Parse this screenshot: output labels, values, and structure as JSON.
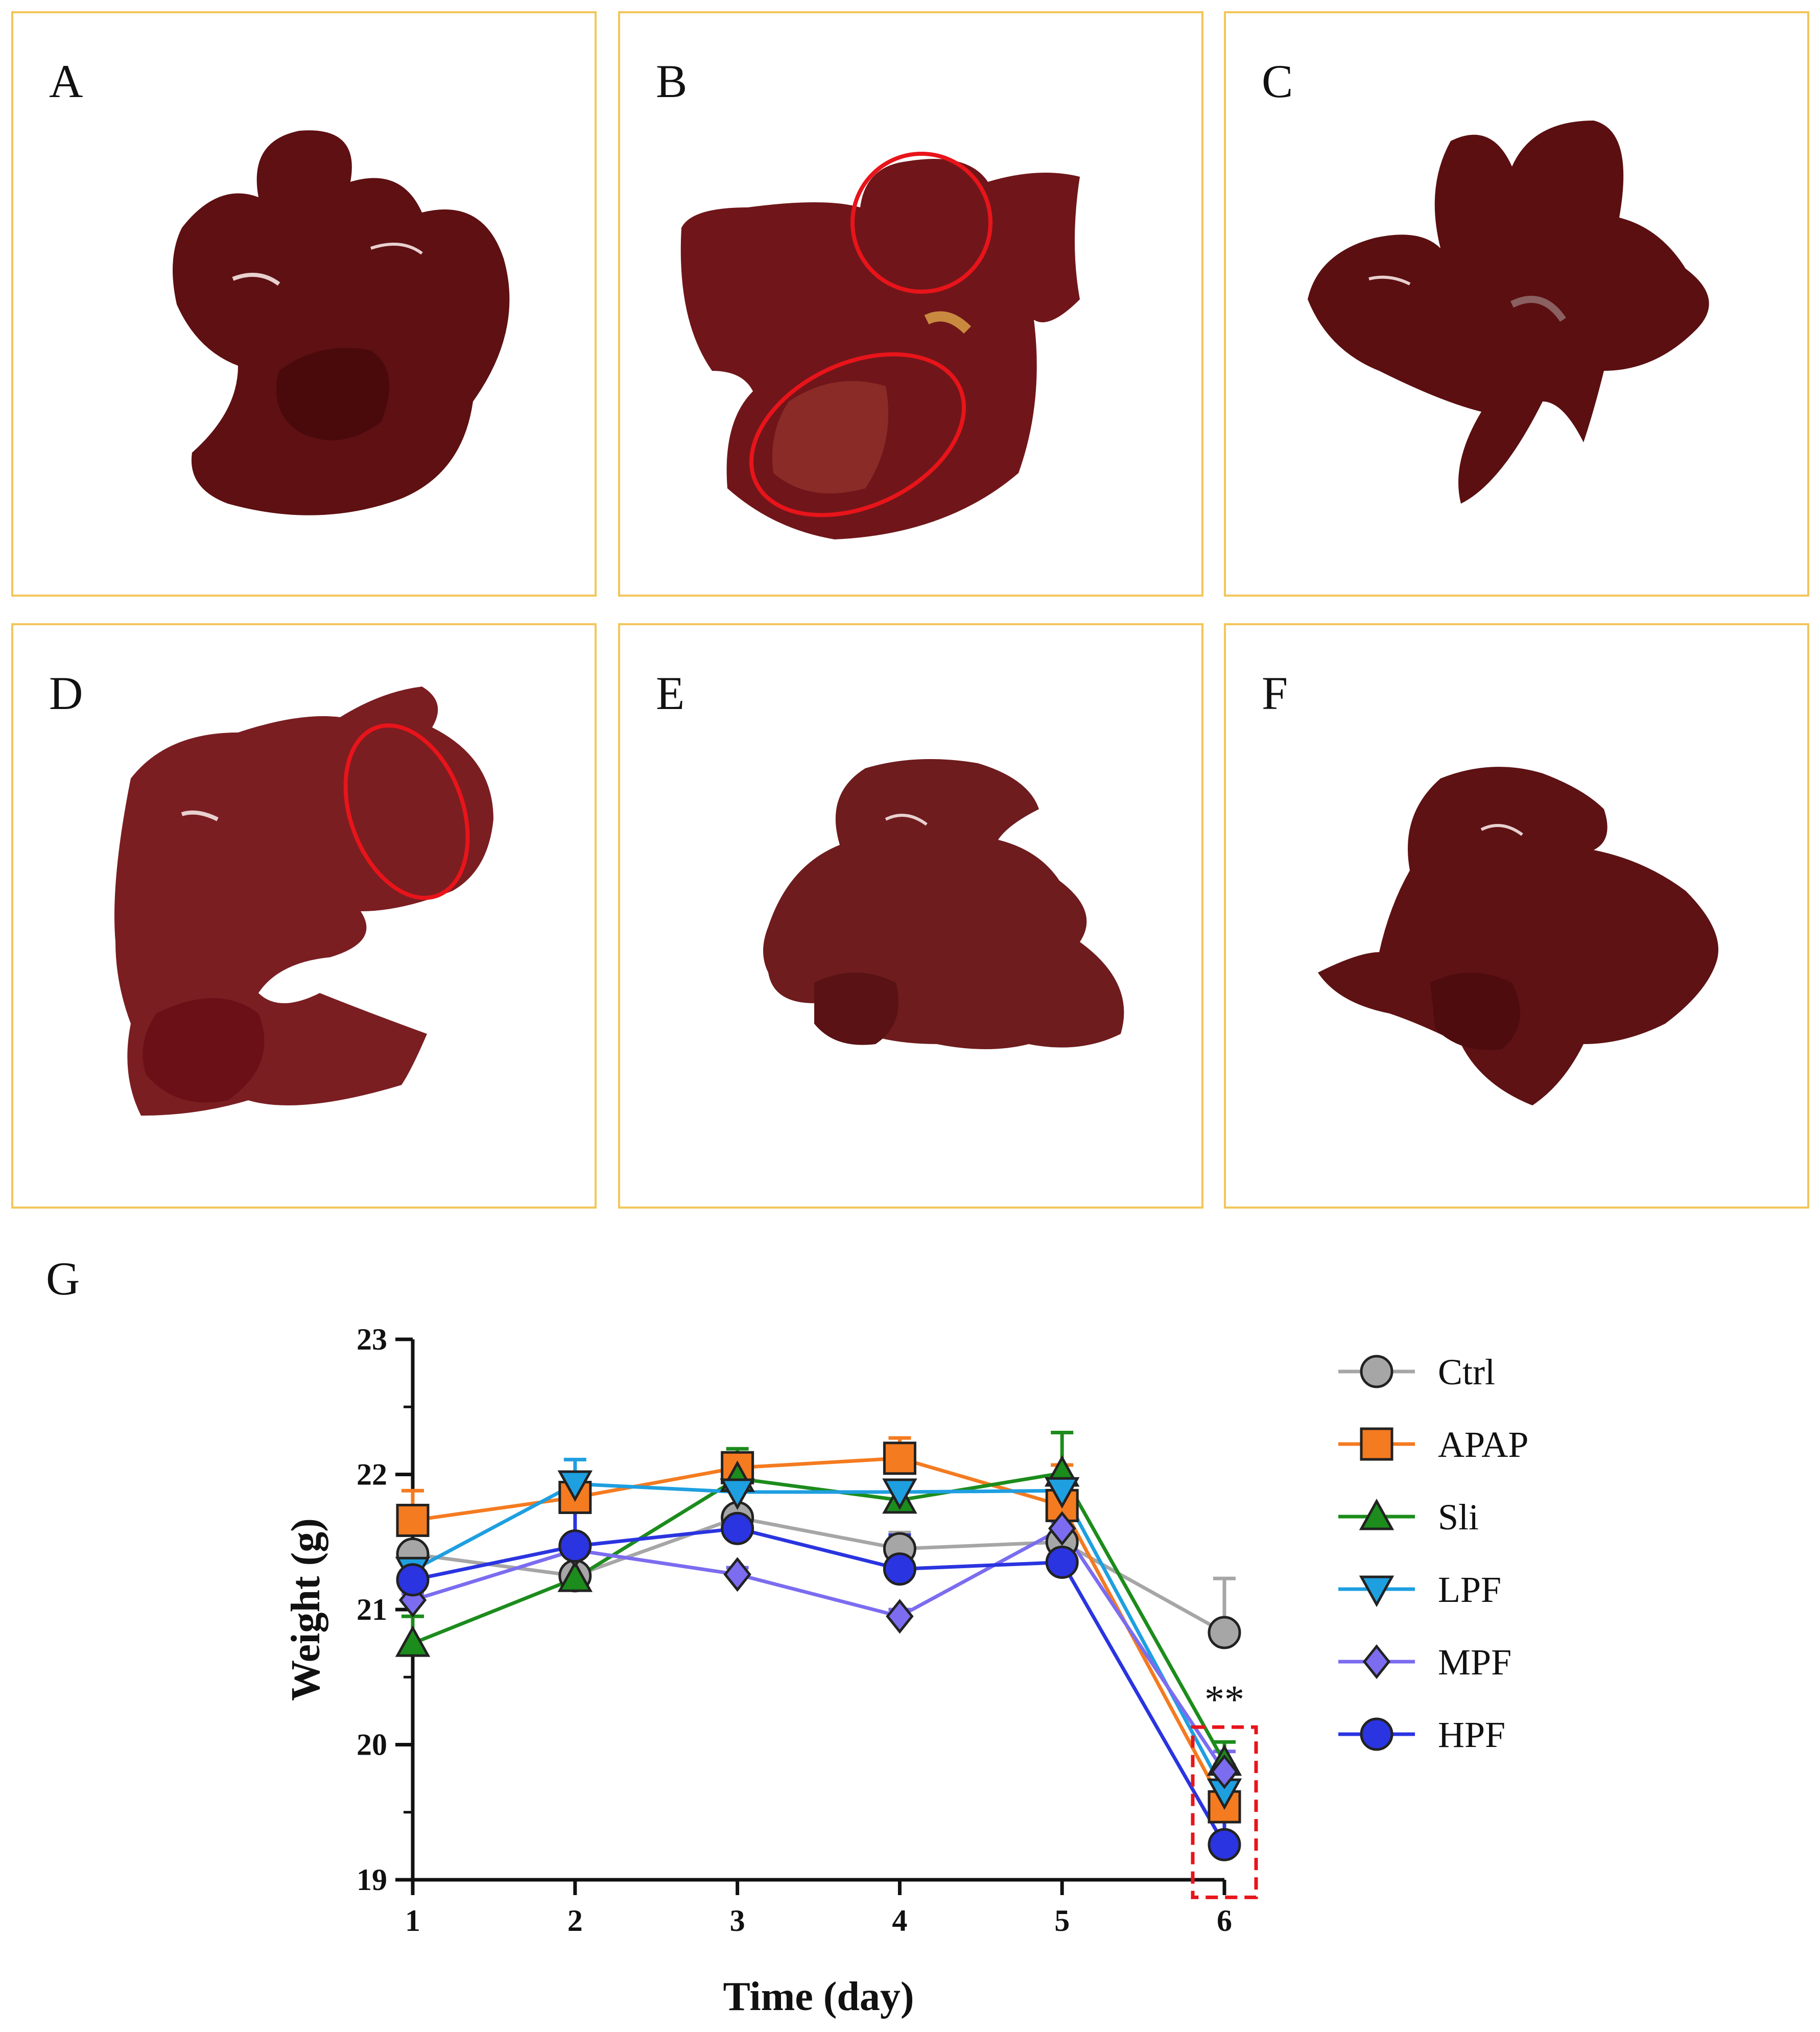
{
  "panels": [
    {
      "label": "A"
    },
    {
      "label": "B"
    },
    {
      "label": "C"
    },
    {
      "label": "D"
    },
    {
      "label": "E"
    },
    {
      "label": "F"
    }
  ],
  "chart_panel_label": "G",
  "chart_data": {
    "type": "line",
    "title": "",
    "xlabel": "Time (day)",
    "ylabel": "Weight  (g)",
    "x": [
      1,
      2,
      3,
      4,
      5,
      6
    ],
    "xlim": [
      1,
      6
    ],
    "ylim": [
      19,
      23
    ],
    "yticks": [
      19,
      20,
      21,
      22,
      23
    ],
    "xticks": [
      1,
      2,
      3,
      4,
      5,
      6
    ],
    "annotation": "**",
    "annotation_x": 6,
    "highlight_box_x": 6,
    "series": [
      {
        "name": "Ctrl",
        "marker": "circle",
        "color": "#a6a6a6",
        "values": [
          21.41,
          21.25,
          21.68,
          21.45,
          21.5,
          20.83
        ],
        "errors": [
          0.05,
          0.05,
          0.08,
          0.12,
          0.1,
          0.4
        ]
      },
      {
        "name": "APAP",
        "marker": "square",
        "color": "#f47b20",
        "values": [
          21.66,
          21.83,
          22.05,
          22.12,
          21.77,
          19.54
        ],
        "errors": [
          0.22,
          0.1,
          0.1,
          0.15,
          0.3,
          0.1
        ]
      },
      {
        "name": "Sli",
        "marker": "triangle-up",
        "color": "#1c8c1c",
        "values": [
          20.75,
          21.23,
          21.97,
          21.81,
          22.01,
          19.87
        ],
        "errors": [
          0.2,
          0.05,
          0.22,
          0.1,
          0.3,
          0.15
        ]
      },
      {
        "name": "LPF",
        "marker": "triangle-down",
        "color": "#1e9fe0",
        "values": [
          21.29,
          21.93,
          21.87,
          21.87,
          21.88,
          19.65
        ],
        "errors": [
          0.05,
          0.18,
          0.05,
          0.05,
          0.05,
          0.2
        ]
      },
      {
        "name": "MPF",
        "marker": "diamond",
        "color": "#7b6cf0",
        "values": [
          21.07,
          21.44,
          21.26,
          20.95,
          21.6,
          19.8
        ],
        "errors": [
          0.05,
          0.05,
          0.05,
          0.05,
          0.05,
          0.15
        ]
      },
      {
        "name": "HPF",
        "marker": "circle",
        "color": "#2a34e0",
        "values": [
          21.22,
          21.47,
          21.6,
          21.3,
          21.35,
          19.26
        ],
        "errors": [
          0.05,
          0.3,
          0.15,
          0.25,
          0.05,
          0.3
        ]
      }
    ]
  }
}
